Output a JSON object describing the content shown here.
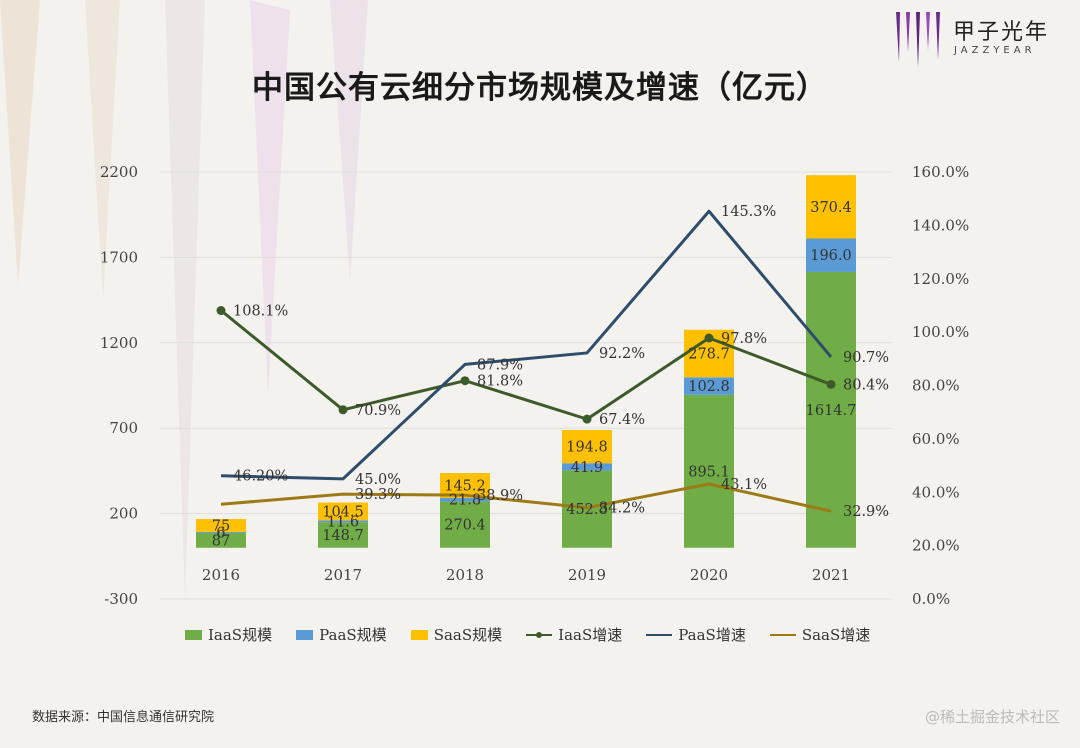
{
  "title": "中国公有云细分市场规模及增速（亿元）",
  "logo": {
    "cn": "甲子光年",
    "en": "JAZZYEAR"
  },
  "source": "数据来源：中国信息通信研究院",
  "watermark": "@稀土掘金技术社区",
  "chart_data": {
    "type": "bar",
    "stacked": true,
    "title": "中国公有云细分市场规模及增速（亿元）",
    "categories": [
      "2016",
      "2017",
      "2018",
      "2019",
      "2020",
      "2021"
    ],
    "ylim": [
      -300,
      2200
    ],
    "yticks": [
      "-300",
      "200",
      "700",
      "1200",
      "1700",
      "2200"
    ],
    "y2lim": [
      0,
      160
    ],
    "y2ticks": [
      "0.0%",
      "20.0%",
      "40.0%",
      "60.0%",
      "80.0%",
      "100.0%",
      "120.0%",
      "140.0%",
      "160.0%"
    ],
    "legend_position": "bottom",
    "grid": true,
    "series": [
      {
        "name": "IaaS规模",
        "kind": "bar",
        "color": "#70ad47",
        "values": [
          87,
          148.7,
          270.4,
          452.8,
          895.1,
          1614.7
        ],
        "labels": [
          "87",
          "148.7",
          "270.4",
          "452.8",
          "895.1",
          "1614.7"
        ]
      },
      {
        "name": "PaaS规模",
        "kind": "bar",
        "color": "#5b9bd5",
        "values": [
          6,
          11.6,
          21.8,
          41.9,
          102.8,
          196.0
        ],
        "labels": [
          "6",
          "11.6",
          "21.8",
          "41.9",
          "102.8",
          "196.0"
        ]
      },
      {
        "name": "SaaS规模",
        "kind": "bar",
        "color": "#ffc000",
        "values": [
          75,
          104.5,
          145.2,
          194.8,
          278.7,
          370.4
        ],
        "labels": [
          "75",
          "104.5",
          "145.2",
          "194.8",
          "278.7",
          "370.4"
        ]
      },
      {
        "name": "IaaS增速",
        "kind": "line",
        "axis": "right",
        "color": "#3d5a2a",
        "marker": true,
        "values": [
          108.1,
          70.9,
          81.8,
          67.4,
          97.8,
          80.4
        ],
        "labels": [
          "108.1%",
          "70.9%",
          "81.8%",
          "67.4%",
          "97.8%",
          "80.4%"
        ]
      },
      {
        "name": "PaaS增速",
        "kind": "line",
        "axis": "right",
        "color": "#2e4d6b",
        "marker": false,
        "values": [
          46.2,
          45.0,
          87.9,
          92.2,
          145.3,
          90.7
        ],
        "labels": [
          "46.20%",
          "45.0%",
          "87.9%",
          "92.2%",
          "145.3%",
          "90.7%"
        ]
      },
      {
        "name": "SaaS增速",
        "kind": "line",
        "axis": "right",
        "color": "#9c7a16",
        "marker": false,
        "values": [
          35.5,
          39.3,
          38.9,
          34.2,
          43.1,
          32.9
        ],
        "labels": [
          "",
          "39.3%",
          "38.9%",
          "34.2%",
          "43.1%",
          "32.9%"
        ]
      }
    ]
  }
}
